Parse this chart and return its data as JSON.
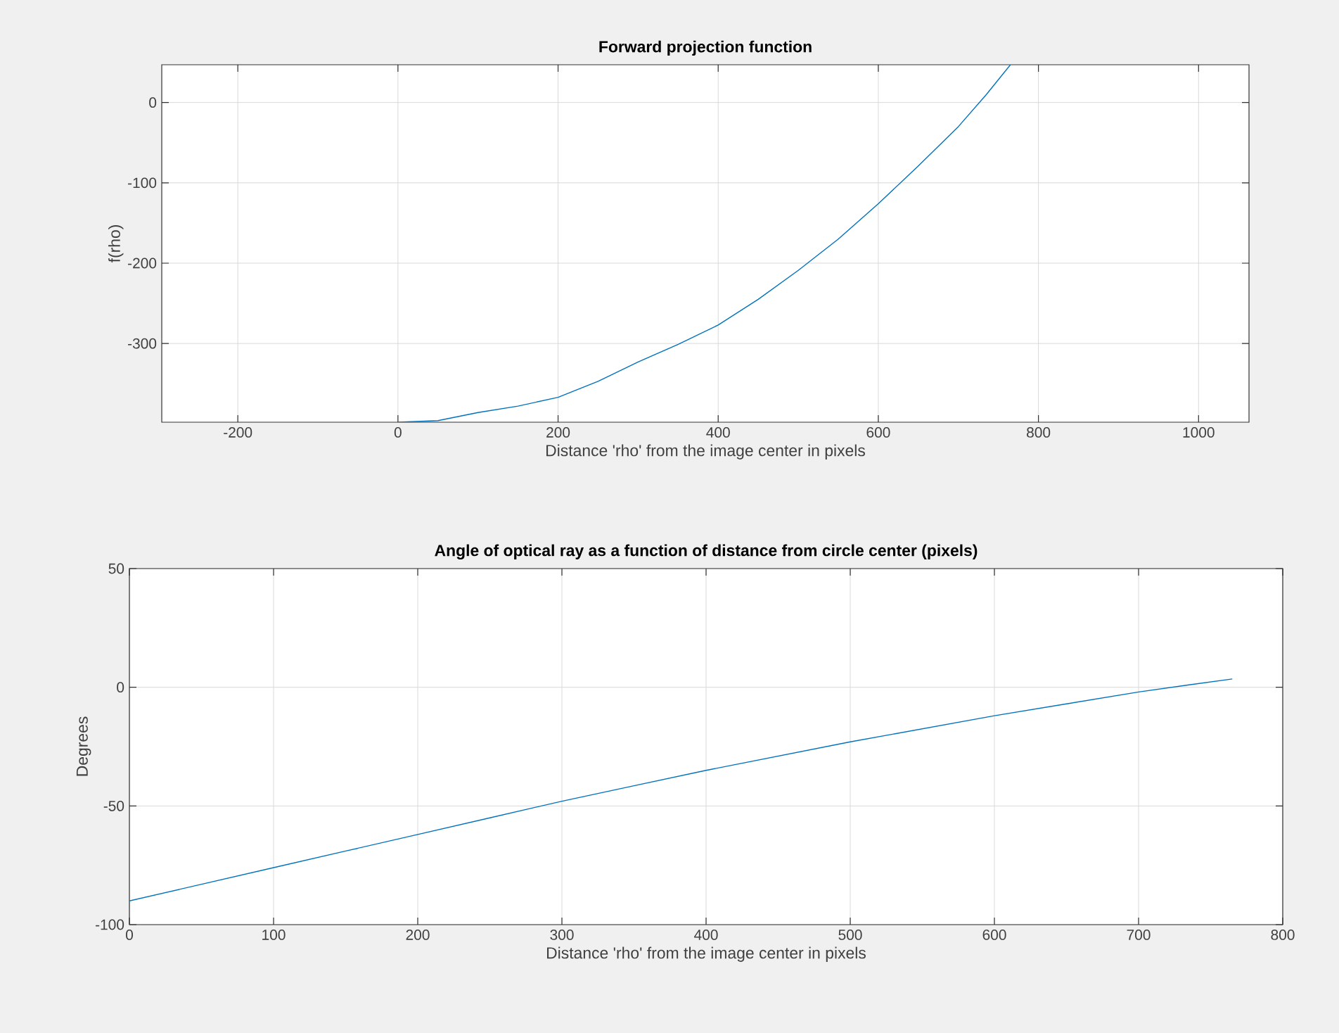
{
  "chart_data": [
    {
      "type": "line",
      "title": "Forward projection function",
      "xlabel": "Distance 'rho' from the image center in pixels",
      "ylabel": "f(rho)",
      "x": [
        0,
        50,
        100,
        150,
        200,
        250,
        300,
        350,
        400,
        450,
        500,
        550,
        600,
        650,
        700,
        735,
        765
      ],
      "series": [
        {
          "color": "#0072bd",
          "values": [
            -398,
            -396,
            -386,
            -378,
            -367,
            -347,
            -323,
            -301,
            -277,
            -245,
            -209,
            -170,
            -126,
            -79,
            -30,
            10,
            47
          ]
        }
      ],
      "xlim": [
        -295,
        1063
      ],
      "ylim": [
        -398,
        47
      ],
      "xticks": [
        -200,
        0,
        200,
        400,
        600,
        800,
        1000
      ],
      "yticks": [
        -300,
        -200,
        -100,
        0
      ],
      "grid": true
    },
    {
      "type": "line",
      "title": "Angle of optical ray as a function of distance from circle center (pixels)",
      "xlabel": "Distance 'rho' from the image center in pixels",
      "ylabel": "Degrees",
      "x": [
        0,
        50,
        100,
        150,
        200,
        250,
        300,
        350,
        400,
        450,
        500,
        550,
        600,
        650,
        700,
        735,
        765
      ],
      "series": [
        {
          "color": "#0072bd",
          "values": [
            -90,
            -83,
            -76,
            -69,
            -62,
            -55,
            -48,
            -41.5,
            -35,
            -29,
            -23,
            -17.5,
            -12,
            -7,
            -2,
            1,
            3.5
          ]
        }
      ],
      "xlim": [
        0,
        800
      ],
      "ylim": [
        -100,
        50
      ],
      "xticks": [
        0,
        100,
        200,
        300,
        400,
        500,
        600,
        700,
        800
      ],
      "yticks": [
        -100,
        -50,
        0,
        50
      ],
      "grid": true
    }
  ]
}
